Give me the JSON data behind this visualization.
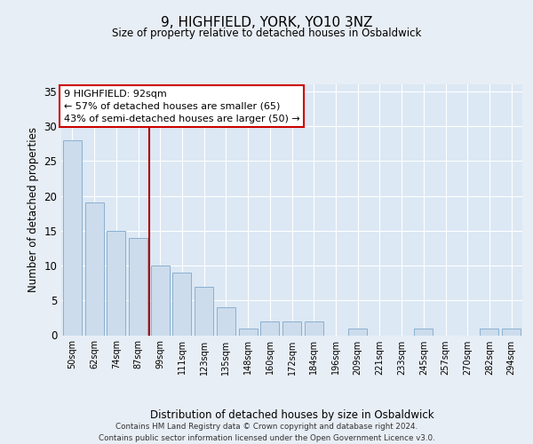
{
  "title": "9, HIGHFIELD, YORK, YO10 3NZ",
  "subtitle": "Size of property relative to detached houses in Osbaldwick",
  "xlabel": "Distribution of detached houses by size in Osbaldwick",
  "ylabel": "Number of detached properties",
  "categories": [
    "50sqm",
    "62sqm",
    "74sqm",
    "87sqm",
    "99sqm",
    "111sqm",
    "123sqm",
    "135sqm",
    "148sqm",
    "160sqm",
    "172sqm",
    "184sqm",
    "196sqm",
    "209sqm",
    "221sqm",
    "233sqm",
    "245sqm",
    "257sqm",
    "270sqm",
    "282sqm",
    "294sqm"
  ],
  "values": [
    28,
    19,
    15,
    14,
    10,
    9,
    7,
    4,
    1,
    2,
    2,
    2,
    0,
    1,
    0,
    0,
    1,
    0,
    0,
    1,
    1
  ],
  "bar_color": "#ccdcec",
  "bar_edge_color": "#8ab0d0",
  "vline_x": 3.5,
  "vline_color": "#aa0000",
  "annotation_text": "9 HIGHFIELD: 92sqm\n← 57% of detached houses are smaller (65)\n43% of semi-detached houses are larger (50) →",
  "annotation_box_color": "#ffffff",
  "annotation_box_edge_color": "#cc0000",
  "ylim": [
    0,
    36
  ],
  "yticks": [
    0,
    5,
    10,
    15,
    20,
    25,
    30,
    35
  ],
  "background_color": "#e8eef5",
  "plot_bg_color": "#dce8f4",
  "footer_line1": "Contains HM Land Registry data © Crown copyright and database right 2024.",
  "footer_line2": "Contains public sector information licensed under the Open Government Licence v3.0."
}
